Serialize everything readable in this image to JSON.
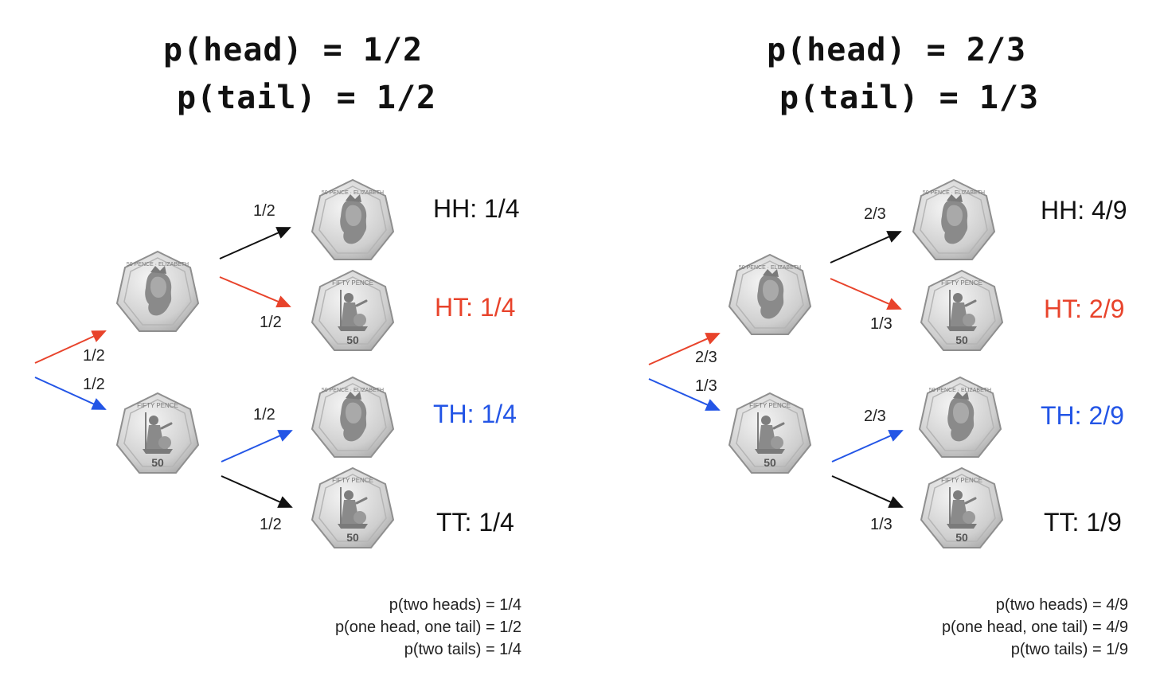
{
  "colors": {
    "black": "#111111",
    "red": "#e8432b",
    "blue": "#2355e6",
    "coin_fill": "#d9d9d9",
    "coin_stroke": "#9c9c9c"
  },
  "panels": [
    {
      "title_line1": "p(head) = 1/2",
      "title_line2": "p(tail) = 1/2",
      "edge_labels": {
        "root_head": "1/2",
        "root_tail": "1/2",
        "hh": "1/2",
        "ht": "1/2",
        "th": "1/2",
        "tt": "1/2"
      },
      "outcomes": {
        "hh": "HH: 1/4",
        "ht": "HT: 1/4",
        "th": "TH: 1/4",
        "tt": "TT: 1/4"
      },
      "summary": [
        "p(two heads) = 1/4",
        "p(one head, one tail) = 1/2",
        "p(two tails) = 1/4"
      ]
    },
    {
      "title_line1": "p(head) = 2/3",
      "title_line2": "p(tail) = 1/3",
      "edge_labels": {
        "root_head": "2/3",
        "root_tail": "1/3",
        "hh": "2/3",
        "ht": "1/3",
        "th": "2/3",
        "tt": "1/3"
      },
      "outcomes": {
        "hh": "HH: 4/9",
        "ht": "HT: 2/9",
        "th": "TH: 2/9",
        "tt": "TT: 1/9"
      },
      "summary": [
        "p(two heads) = 4/9",
        "p(one head, one tail) = 4/9",
        "p(two tails) = 1/9"
      ]
    }
  ],
  "coins": {
    "head_face": "queen-portrait-icon",
    "tail_face": "britannia-icon",
    "tail_value": "50"
  }
}
